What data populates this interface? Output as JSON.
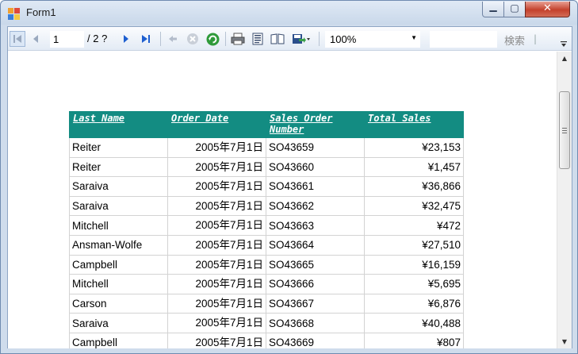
{
  "window": {
    "title": "Form1"
  },
  "toolbar": {
    "current_page": "1",
    "page_total": "/ 2 ?",
    "zoom": "100%",
    "search_placeholder": "",
    "search_label": "検索",
    "search_separator": "|"
  },
  "report": {
    "columns": [
      "Last Name",
      "Order Date",
      "Sales Order Number",
      "Total Sales"
    ],
    "rows": [
      [
        "Reiter",
        "2005年7月1日",
        "SO43659",
        "¥23,153"
      ],
      [
        "Reiter",
        "2005年7月1日",
        "SO43660",
        "¥1,457"
      ],
      [
        "Saraiva",
        "2005年7月1日",
        "SO43661",
        "¥36,866"
      ],
      [
        "Saraiva",
        "2005年7月1日",
        "SO43662",
        "¥32,475"
      ],
      [
        "Mitchell",
        "2005年7月1日",
        "SO43663",
        "¥472"
      ],
      [
        "Ansman-Wolfe",
        "2005年7月1日",
        "SO43664",
        "¥27,510"
      ],
      [
        "Campbell",
        "2005年7月1日",
        "SO43665",
        "¥16,159"
      ],
      [
        "Mitchell",
        "2005年7月1日",
        "SO43666",
        "¥5,695"
      ],
      [
        "Carson",
        "2005年7月1日",
        "SO43667",
        "¥6,876"
      ],
      [
        "Saraiva",
        "2005年7月1日",
        "SO43668",
        "¥40,488"
      ],
      [
        "Campbell",
        "2005年7月1日",
        "SO43669",
        "¥807"
      ]
    ]
  },
  "colors": {
    "header_bg": "#138c82",
    "header_text": "#ffffff",
    "grid_line": "#d3d3d3",
    "close_button": "#c4412c"
  },
  "icons": [
    "app-icon",
    "first-page-icon",
    "previous-page-icon",
    "next-page-icon",
    "last-page-icon",
    "back-icon",
    "stop-icon",
    "refresh-icon",
    "print-icon",
    "print-layout-icon",
    "page-setup-icon",
    "export-icon",
    "minimize-icon",
    "maximize-icon",
    "close-icon"
  ]
}
